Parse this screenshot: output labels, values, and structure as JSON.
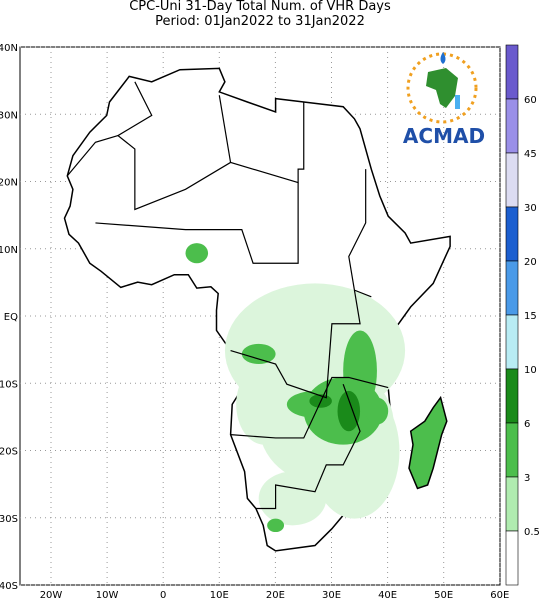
{
  "header": {
    "title_line1": "CPC-Uni 31-Day Total Num. of VHR Days",
    "title_line2": "Period: 01Jan2022 to 31Jan2022"
  },
  "map": {
    "lat_labels": [
      "40N",
      "30N",
      "20N",
      "10N",
      "EQ",
      "10S",
      "20S",
      "30S",
      "40S"
    ],
    "lon_labels": [
      "20W",
      "10W",
      "0",
      "10E",
      "20E",
      "30E",
      "40E",
      "50E",
      "60E"
    ]
  },
  "colorbar": {
    "labels": [
      "60",
      "45",
      "30",
      "20",
      "15",
      "10",
      "6",
      "3",
      "0.5"
    ],
    "colors": [
      "#6a5acd",
      "#9a8fe8",
      "#dcdcf2",
      "#1c5fd0",
      "#4a9ae8",
      "#b8ecf4",
      "#1a8a1a",
      "#4cbe4c",
      "#b0ecb0",
      "#ffffff"
    ]
  },
  "logo": {
    "text": "ACMAD"
  }
}
